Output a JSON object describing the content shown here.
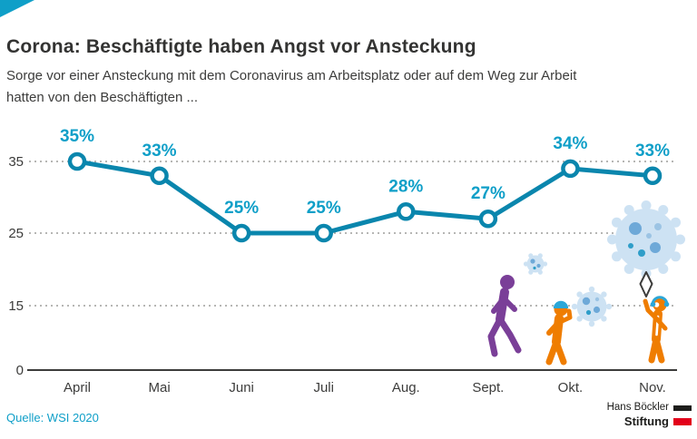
{
  "page": {
    "title": "Corona: Beschäftigte haben Angst vor Ansteckung",
    "subtitle": "Sorge vor einer Ansteckung mit dem Coronavirus am Arbeitsplatz oder auf dem Weg zur Arbeit hatten von den Beschäftigten ...",
    "source": "Quelle: WSI 2020",
    "logo_line1": "Hans Böckler",
    "logo_line2": "Stiftung"
  },
  "colors": {
    "line": "#0a86ad",
    "value_label": "#0f9fc8",
    "text": "#3c3c3b",
    "grid": "#9d9d9c",
    "corner_accent": "#0f9fc8",
    "purple_figure": "#7a3f98",
    "orange_figure": "#ef7d00",
    "virus_body": "#cde2f3",
    "virus_dots": "#6ea9d8",
    "logo_red": "#e2001a",
    "logo_black": "#1d1d1b"
  },
  "chart_data": {
    "type": "line",
    "title": "Corona: Beschäftigte haben Angst vor Ansteckung",
    "categories": [
      "April",
      "Mai",
      "Juni",
      "Juli",
      "Aug.",
      "Sept.",
      "Okt.",
      "Nov."
    ],
    "values": [
      35,
      33,
      25,
      25,
      28,
      27,
      34,
      33
    ],
    "value_labels": [
      "35%",
      "33%",
      "25%",
      "25%",
      "28%",
      "27%",
      "34%",
      "33%"
    ],
    "unit": "%",
    "yticks": [
      35,
      25,
      15,
      0
    ],
    "ylim": [
      0,
      40
    ],
    "xlabel": "",
    "ylabel": "",
    "grid": "horizontal-dotted",
    "legend": "none"
  }
}
